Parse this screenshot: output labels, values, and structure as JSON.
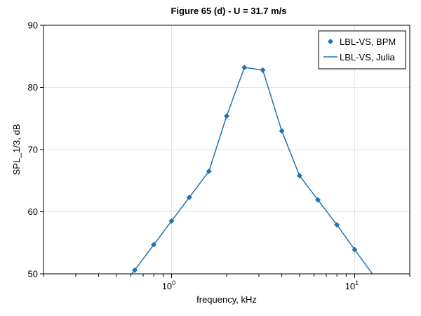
{
  "chart_data": {
    "type": "line",
    "title": "Figure 65 (d) - U = 31.7 m/s",
    "xlabel": "frequency, kHz",
    "ylabel": "SPL_1/3, dB",
    "x_scale": "log",
    "xlim": [
      0.2,
      20
    ],
    "ylim": [
      50,
      90
    ],
    "grid": true,
    "legend_position": "top-right",
    "y_ticks": [
      "50",
      "60",
      "70",
      "80",
      "90"
    ],
    "x_ticks": [
      {
        "value": 1,
        "base": "10",
        "exp": "0"
      },
      {
        "value": 10,
        "base": "10",
        "exp": "1"
      }
    ],
    "colors": {
      "series": "#1f73b4"
    },
    "series": [
      {
        "name": "LBL-VS, BPM",
        "style": "markers",
        "marker": "diamond",
        "x": [
          0.63,
          0.8,
          1.0,
          1.25,
          1.6,
          2.0,
          2.5,
          3.15,
          4.0,
          5.0,
          6.3,
          8.0,
          10.0
        ],
        "y": [
          50.6,
          54.7,
          58.5,
          62.3,
          66.5,
          75.4,
          83.2,
          82.8,
          73.0,
          65.8,
          61.9,
          57.9,
          53.9
        ]
      },
      {
        "name": "LBL-VS, Julia",
        "style": "line",
        "x": [
          0.56,
          0.63,
          0.8,
          1.0,
          1.25,
          1.6,
          2.0,
          2.5,
          3.15,
          4.0,
          5.0,
          6.3,
          8.0,
          10.0,
          12.5
        ],
        "y": [
          48.8,
          50.6,
          54.7,
          58.5,
          62.3,
          66.5,
          75.4,
          83.2,
          82.8,
          73.0,
          65.8,
          61.9,
          57.9,
          53.9,
          50.0
        ]
      }
    ]
  }
}
